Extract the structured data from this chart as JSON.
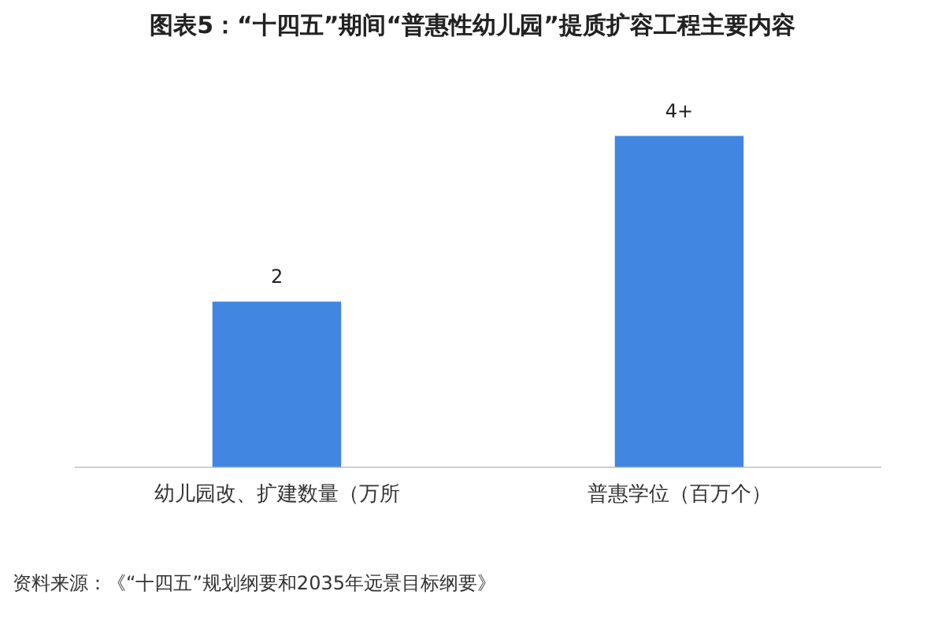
{
  "chart_data": {
    "type": "bar",
    "title": "图表5：“十四五”期间“普惠性幼儿园”提质扩容工程主要内容",
    "categories": [
      "幼儿园改、扩建数量（万所",
      "普惠学位（百万个）"
    ],
    "values": [
      2,
      4
    ],
    "value_labels": [
      "2",
      "4+"
    ],
    "color": "#4186e0",
    "tick_labels": "x",
    "annotations": [
      "资料来源：《“十四五”规划纲要和2035年远景目标纲要》"
    ]
  }
}
